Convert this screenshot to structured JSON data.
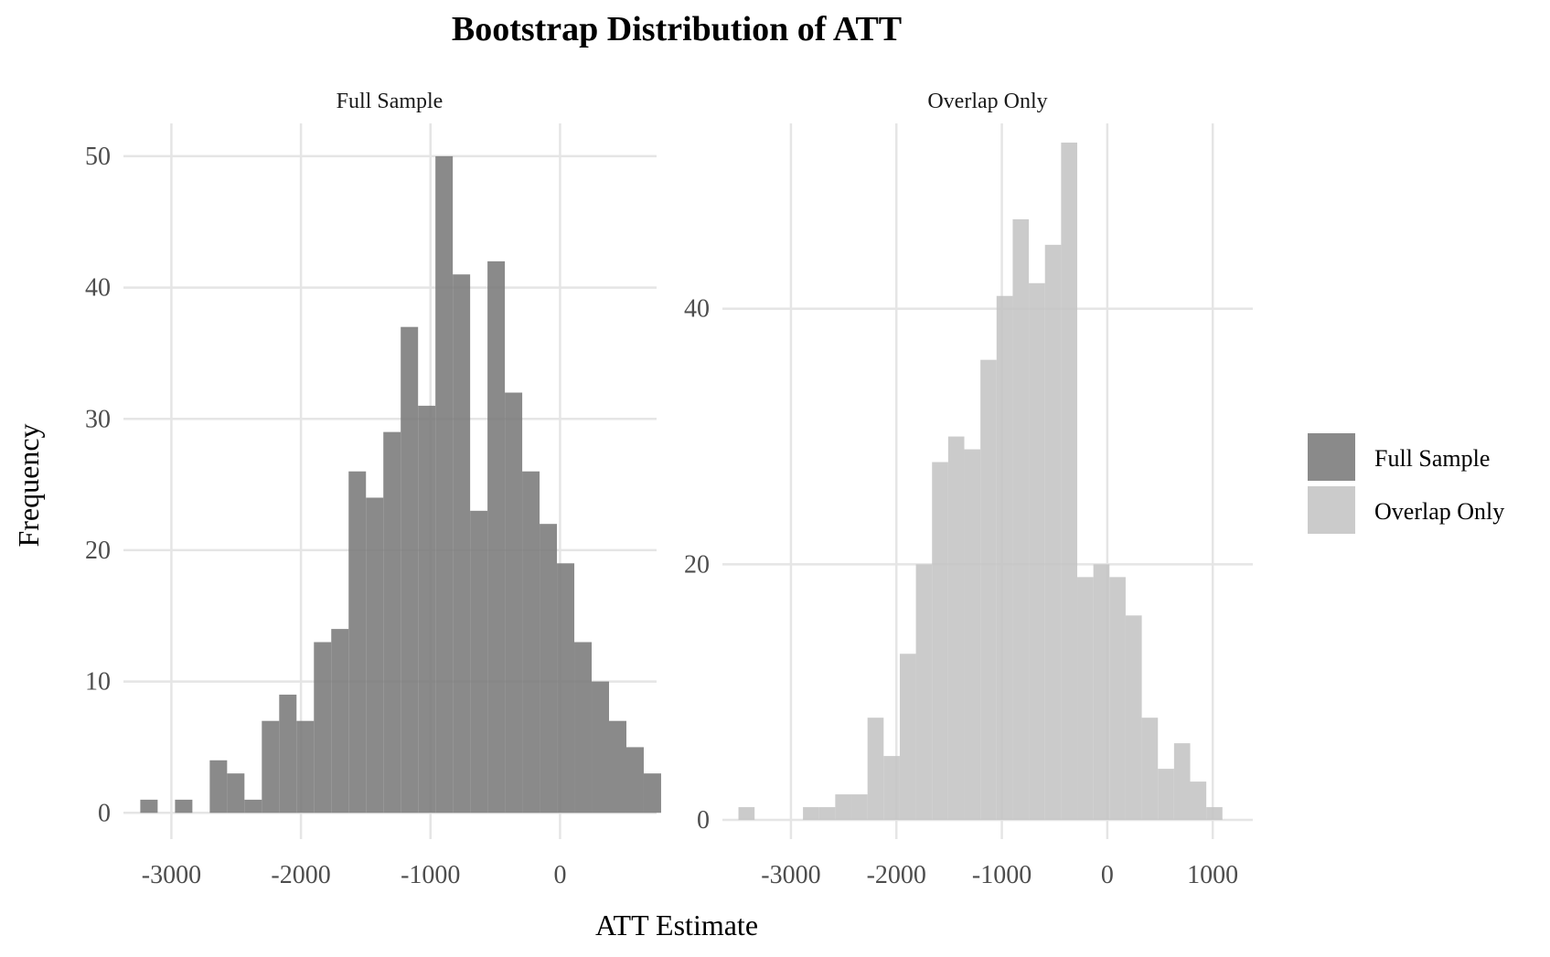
{
  "chart_data": {
    "type": "bar",
    "title": "Bootstrap Distribution of ATT",
    "xlabel": "ATT Estimate",
    "ylabel": "Frequency",
    "legend": {
      "position": "right",
      "entries": [
        {
          "name": "Full Sample",
          "color": "#7a7a7a"
        },
        {
          "name": "Overlap Only",
          "color": "#c4c4c4"
        }
      ]
    },
    "grid": true,
    "panels": [
      {
        "strip_label": "Full Sample",
        "color": "#7a7a7a",
        "opacity": 0.88,
        "xlim": [
          -3370,
          745
        ],
        "ylim": [
          -2,
          52.5
        ],
        "xticks": [
          -3000,
          -2000,
          -1000,
          0
        ],
        "xtick_labels": [
          "-3000",
          "-2000",
          "-1000",
          "0"
        ],
        "yticks": [
          0,
          10,
          20,
          30,
          40,
          50
        ],
        "ytick_labels": [
          "0",
          "10",
          "20",
          "30",
          "40",
          "50"
        ],
        "bins_start": -3240,
        "bin_width": 134,
        "counts": [
          1,
          0,
          1,
          0,
          4,
          3,
          1,
          7,
          9,
          7,
          13,
          14,
          26,
          24,
          29,
          37,
          31,
          50,
          41,
          23,
          42,
          32,
          26,
          22,
          19,
          13,
          10,
          7,
          5,
          3
        ]
      },
      {
        "strip_label": "Overlap Only",
        "color": "#c4c4c4",
        "opacity": 0.88,
        "xlim": [
          -3650,
          1380
        ],
        "ylim": [
          -1.5,
          54.5
        ],
        "xticks": [
          -3000,
          -2000,
          -1000,
          0,
          1000
        ],
        "xtick_labels": [
          "-3000",
          "-2000",
          "-1000",
          "0",
          "1000"
        ],
        "yticks": [
          0,
          20,
          40
        ],
        "ytick_labels": [
          "0",
          "20",
          "40"
        ],
        "bins_start": -3498,
        "bin_width": 153,
        "counts": [
          1,
          0,
          0,
          0,
          1,
          1,
          2,
          2,
          8,
          5,
          13,
          20,
          28,
          30,
          29,
          36,
          41,
          47,
          42,
          45,
          53,
          19,
          20,
          19,
          16,
          8,
          4,
          6,
          3,
          1
        ]
      }
    ]
  }
}
